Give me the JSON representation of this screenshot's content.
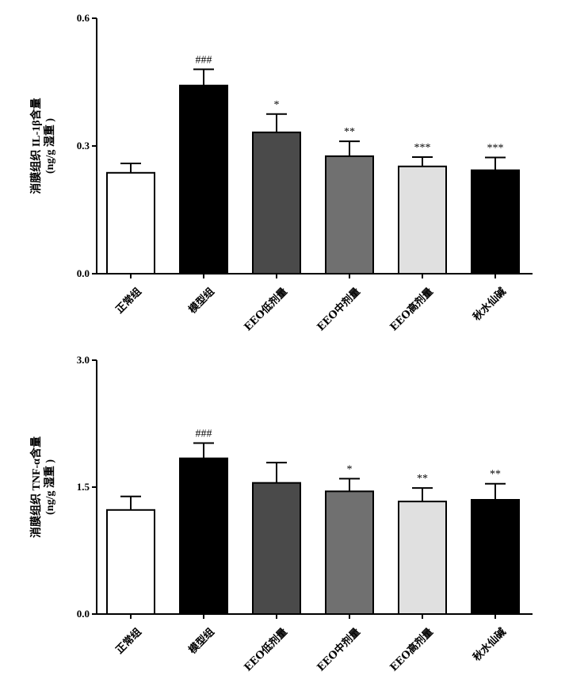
{
  "chart_data": [
    {
      "type": "bar",
      "ylabel_line1": "消膜组织 IL-1β含量",
      "ylabel_line2": "(ng/g 湿重 )",
      "categories": [
        "正常组",
        "模型组",
        "EEO低剂量",
        "EEO中剂量",
        "EEO高剂量",
        "秋水仙碱"
      ],
      "values": [
        0.237,
        0.442,
        0.332,
        0.276,
        0.252,
        0.243
      ],
      "errors": [
        0.022,
        0.038,
        0.043,
        0.035,
        0.022,
        0.03
      ],
      "significance": [
        "",
        "###",
        "*",
        "**",
        "***",
        "***"
      ],
      "bar_colors": [
        "#ffffff",
        "#000000",
        "#4a4a4a",
        "#707070",
        "#e0e0e0",
        "#000000"
      ],
      "ylim": [
        0,
        0.6
      ],
      "yticks": [
        "0.0",
        "0.3",
        "0.6"
      ],
      "ytick_values": [
        0,
        0.3,
        0.6
      ]
    },
    {
      "type": "bar",
      "ylabel_line1": "消膜组织 TNF-α含量",
      "ylabel_line2": "(ng/g 湿重 )",
      "categories": [
        "正常组",
        "模型组",
        "EEO低剂量",
        "EEO中剂量",
        "EEO高剂量",
        "秋水仙碱"
      ],
      "values": [
        1.23,
        1.84,
        1.55,
        1.45,
        1.33,
        1.35
      ],
      "errors": [
        0.16,
        0.18,
        0.24,
        0.15,
        0.16,
        0.19
      ],
      "significance": [
        "",
        "###",
        "",
        "*",
        "**",
        "**"
      ],
      "bar_colors": [
        "#ffffff",
        "#000000",
        "#4a4a4a",
        "#707070",
        "#e0e0e0",
        "#000000"
      ],
      "ylim": [
        0,
        3.0
      ],
      "yticks": [
        "0.0",
        "1.5",
        "3.0"
      ],
      "ytick_values": [
        0,
        1.5,
        3.0
      ]
    }
  ]
}
